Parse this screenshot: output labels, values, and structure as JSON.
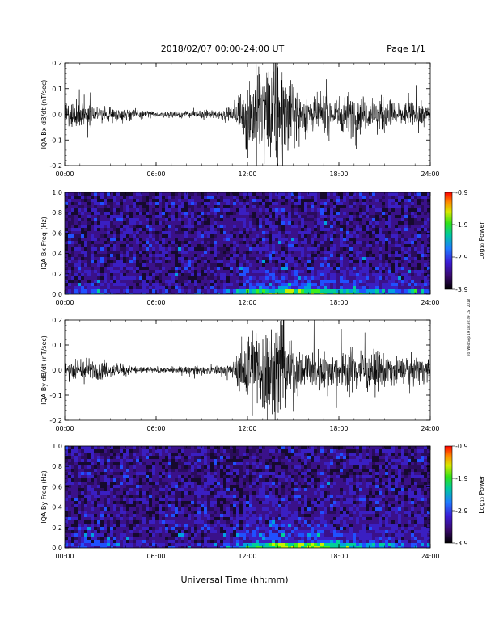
{
  "header": {
    "title": "2018/02/07  00:00-24:00 UT",
    "page": "Page 1/1"
  },
  "footer": {
    "xlabel": "Universal Time (hh:mm)"
  },
  "side_stamp": "rdi Wed Sep 19 18:30:49 CST 2018",
  "colorbar": {
    "label": "Log₁₀ Power",
    "min": -3.9,
    "max": -0.9,
    "tick_labels": [
      "-0.9",
      "-1.9",
      "-2.9",
      "-3.9"
    ]
  },
  "x_axis": {
    "range_hours": [
      0,
      24
    ],
    "tick_labels": [
      "00:00",
      "06:00",
      "12:00",
      "18:00",
      "24:00"
    ]
  },
  "chart_data": [
    {
      "type": "line",
      "ylabel": "IQA Bx dB/dt (nT/sec)",
      "ylim": [
        -0.2,
        0.2
      ],
      "y_tick_labels": [
        "-0.2",
        "-0.1",
        "0.0",
        "0.1",
        "0.2"
      ],
      "envelope": {
        "hour": [
          0,
          1,
          2,
          3,
          4,
          5,
          6,
          7,
          8,
          9,
          10,
          11,
          11.5,
          12,
          13,
          14,
          15,
          16,
          17,
          18,
          19,
          20,
          21,
          22,
          23,
          24
        ],
        "amplitude": [
          0.05,
          0.07,
          0.045,
          0.035,
          0.03,
          0.02,
          0.015,
          0.015,
          0.02,
          0.02,
          0.025,
          0.03,
          0.09,
          0.2,
          0.24,
          0.3,
          0.14,
          0.1,
          0.09,
          0.09,
          0.11,
          0.07,
          0.09,
          0.06,
          0.06,
          0.05
        ]
      }
    },
    {
      "type": "heatmap",
      "ylabel": "IQA Bx Freq (Hz)",
      "ylim": [
        0,
        1.0
      ],
      "y_tick_labels": [
        "0.0",
        "0.2",
        "0.4",
        "0.6",
        "0.8",
        "1.0"
      ],
      "activity_by_hour": {
        "hour": [
          0,
          2,
          4,
          6,
          8,
          10,
          11.5,
          12,
          14,
          16,
          18,
          20,
          22,
          24
        ],
        "level": [
          0.2,
          0.25,
          0.15,
          0.1,
          0.12,
          0.15,
          0.4,
          0.6,
          0.7,
          0.75,
          0.55,
          0.45,
          0.35,
          0.3
        ]
      }
    },
    {
      "type": "line",
      "ylabel": "IQA By dB/dt (nT/sec)",
      "ylim": [
        -0.2,
        0.2
      ],
      "y_tick_labels": [
        "-0.2",
        "-0.1",
        "0.0",
        "0.1",
        "0.2"
      ],
      "envelope": {
        "hour": [
          0,
          1,
          2,
          3,
          4,
          5,
          6,
          7,
          8,
          9,
          10,
          11,
          11.5,
          12,
          13,
          14,
          15,
          16,
          17,
          18,
          19,
          20,
          21,
          22,
          23,
          24
        ],
        "amplitude": [
          0.04,
          0.07,
          0.05,
          0.035,
          0.03,
          0.02,
          0.015,
          0.015,
          0.02,
          0.02,
          0.025,
          0.035,
          0.1,
          0.22,
          0.24,
          0.3,
          0.12,
          0.11,
          0.1,
          0.09,
          0.13,
          0.09,
          0.1,
          0.06,
          0.07,
          0.05
        ]
      }
    },
    {
      "type": "heatmap",
      "ylabel": "IQA By Freq (Hz)",
      "ylim": [
        0,
        1.0
      ],
      "y_tick_labels": [
        "0.0",
        "0.2",
        "0.4",
        "0.6",
        "0.8",
        "1.0"
      ],
      "activity_by_hour": {
        "hour": [
          0,
          2,
          4,
          6,
          8,
          10,
          11.5,
          12,
          14,
          16,
          18,
          20,
          22,
          24
        ],
        "level": [
          0.2,
          0.25,
          0.15,
          0.1,
          0.12,
          0.15,
          0.4,
          0.6,
          0.7,
          0.75,
          0.55,
          0.45,
          0.35,
          0.3
        ]
      }
    }
  ]
}
